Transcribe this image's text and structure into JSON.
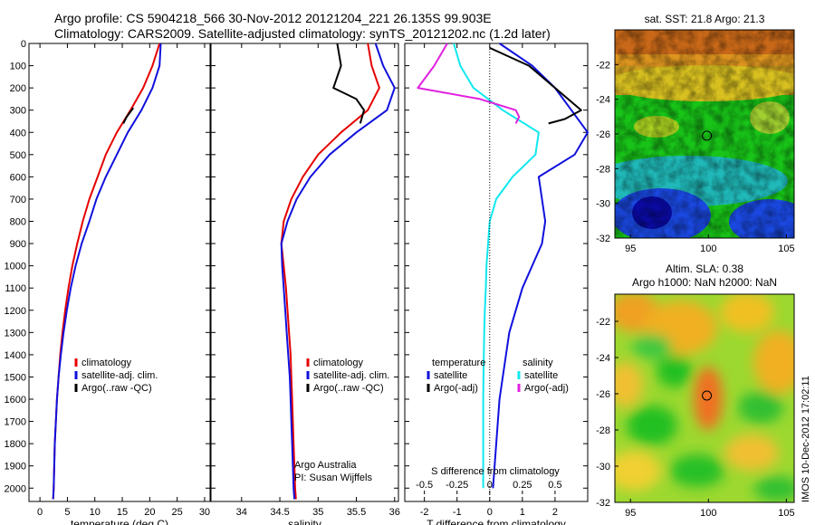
{
  "header": {
    "line1": "Argo profile: CS 5904218_566 30-Nov-2012 20121204_221 26.135S 99.903E",
    "line2": "Climatology: CARS2009. Satellite-adjusted climatology: synTS_20121202.nc (1.2d later)"
  },
  "colors": {
    "climatology": "#e60000",
    "satellite": "#1010dd",
    "argo": "#000000",
    "sat_salinity": "#10e8f0",
    "argo_salinity": "#e020e0"
  },
  "watermark": "IMOS 10-Dec-2012 17:02:11",
  "chart_data": [
    {
      "type": "line",
      "name": "temperature-profile",
      "xlabel": "temperature (deg C)",
      "ylabel": "",
      "xlim": [
        -2,
        31
      ],
      "ylim": [
        2060,
        0
      ],
      "xticks": [
        0,
        5,
        10,
        15,
        20,
        25,
        30
      ],
      "xtick_labels": [
        "0",
        "5",
        "10",
        "15",
        "20",
        "25",
        "30"
      ],
      "yticks": [
        0,
        100,
        200,
        300,
        400,
        500,
        600,
        700,
        800,
        900,
        1000,
        1100,
        1200,
        1300,
        1400,
        1500,
        1600,
        1700,
        1800,
        1900,
        2000
      ],
      "ytick_labels": [
        "0",
        "100",
        "200",
        "300",
        "400",
        "500",
        "600",
        "700",
        "800",
        "900",
        "1000",
        "1100",
        "1200",
        "1300",
        "1400",
        "1500",
        "1600",
        "1700",
        "1800",
        "1900",
        "2000"
      ],
      "legend": [
        "climatology",
        "satellite-adj. clim.",
        "Argo(..raw -QC)"
      ],
      "annotations": [],
      "series": [
        {
          "name": "climatology",
          "color_key": "climatology",
          "x": [
            21.8,
            20.5,
            18.8,
            16.5,
            14.0,
            12.0,
            10.5,
            9.0,
            7.8,
            6.8,
            5.9,
            5.2,
            4.6,
            4.1,
            3.7,
            3.4,
            3.1,
            2.9,
            2.7,
            2.6,
            2.5,
            2.4
          ],
          "y": [
            0,
            100,
            200,
            300,
            400,
            500,
            600,
            700,
            800,
            900,
            1000,
            1100,
            1200,
            1300,
            1400,
            1500,
            1600,
            1700,
            1800,
            1900,
            2000,
            2050
          ]
        },
        {
          "name": "satellite-adj. clim.",
          "color_key": "satellite",
          "x": [
            22.0,
            21.8,
            20.5,
            18.5,
            16.0,
            14.0,
            12.0,
            10.3,
            9.0,
            7.6,
            6.5,
            5.6,
            4.9,
            4.3,
            3.8,
            3.4,
            3.1,
            2.9,
            2.7,
            2.6,
            2.5,
            2.4
          ],
          "y": [
            0,
            100,
            200,
            300,
            400,
            500,
            600,
            700,
            800,
            900,
            1000,
            1100,
            1200,
            1300,
            1400,
            1500,
            1600,
            1700,
            1800,
            1900,
            2000,
            2050
          ]
        },
        {
          "name": "Argo(..raw -QC)",
          "color_key": "argo",
          "x": [
            17.0,
            15.8,
            15.2
          ],
          "y": [
            290,
            330,
            360
          ]
        }
      ]
    },
    {
      "type": "line",
      "name": "salinity-profile",
      "xlabel": "salinity",
      "ylabel": "",
      "xlim": [
        33.6,
        36.05
      ],
      "ylim": [
        2060,
        0
      ],
      "xticks": [
        34,
        34.5,
        35,
        35.5,
        36
      ],
      "xtick_labels": [
        "34",
        "34.5",
        "35",
        "35.5",
        "36"
      ],
      "legend": [
        "climatology",
        "satellite-adj. clim.",
        "Argo(..raw -QC)"
      ],
      "annotations": [
        "Argo Australia",
        "PI: Susan Wijffels"
      ],
      "series": [
        {
          "name": "climatology",
          "color_key": "climatology",
          "x": [
            35.65,
            35.7,
            35.8,
            35.65,
            35.3,
            35.0,
            34.8,
            34.65,
            34.55,
            34.52,
            34.55,
            34.58,
            34.6,
            34.62,
            34.64,
            34.65,
            34.66,
            34.67,
            34.68,
            34.69,
            34.7,
            34.71
          ],
          "y": [
            0,
            100,
            200,
            300,
            400,
            500,
            600,
            700,
            800,
            900,
            1000,
            1100,
            1200,
            1300,
            1400,
            1500,
            1600,
            1700,
            1800,
            1900,
            2000,
            2050
          ]
        },
        {
          "name": "satellite-adj. clim.",
          "color_key": "satellite",
          "x": [
            35.75,
            35.85,
            36.0,
            35.9,
            35.5,
            35.15,
            34.9,
            34.72,
            34.6,
            34.52,
            34.53,
            34.55,
            34.57,
            34.59,
            34.61,
            34.63,
            34.64,
            34.65,
            34.66,
            34.67,
            34.68,
            34.69
          ],
          "y": [
            0,
            100,
            200,
            300,
            400,
            500,
            600,
            700,
            800,
            900,
            1000,
            1100,
            1200,
            1300,
            1400,
            1500,
            1600,
            1700,
            1800,
            1900,
            2000,
            2050
          ]
        },
        {
          "name": "Argo(..raw -QC)",
          "color_key": "argo",
          "x": [
            35.25,
            35.3,
            35.2,
            35.5,
            35.6,
            35.55
          ],
          "y": [
            0,
            100,
            200,
            250,
            300,
            360
          ]
        }
      ]
    },
    {
      "type": "line",
      "name": "difference-profile",
      "xlabel": "T difference from climatology",
      "xlabel_top": "S difference from climatology",
      "ylabel": "",
      "xlim": [
        -2.6,
        3.0
      ],
      "ylim": [
        2060,
        0
      ],
      "xticks": [
        -2,
        -1,
        0,
        1,
        2
      ],
      "xtick_labels": [
        "-2",
        "-1",
        "0",
        "1",
        "2"
      ],
      "s_ticks": [
        -0.5,
        -0.25,
        0,
        0.25,
        0.5
      ],
      "s_tick_labels": [
        "-0.5",
        "-0.25",
        "0",
        "0.25",
        "0.5"
      ],
      "legend_title_t": "temperature",
      "legend_title_s": "salinity",
      "legend_t": [
        "satellite",
        "Argo(-adj)"
      ],
      "legend_s": [
        "satellite",
        "Argo(-adj)"
      ],
      "series": [
        {
          "name": "temperature satellite",
          "color_key": "satellite",
          "x": [
            0.3,
            1.3,
            2.0,
            2.5,
            3.0,
            2.6,
            1.5,
            1.6,
            1.7,
            1.6,
            1.3,
            1.0,
            0.8,
            0.6,
            0.5,
            0.4,
            0.3,
            0.25,
            0.2,
            0.15,
            0.1
          ],
          "y": [
            0,
            100,
            200,
            300,
            400,
            500,
            600,
            700,
            800,
            900,
            1000,
            1100,
            1200,
            1300,
            1400,
            1500,
            1600,
            1700,
            1800,
            1900,
            2000
          ]
        },
        {
          "name": "temperature Argo(-adj)",
          "color_key": "argo",
          "x": [
            0.0,
            1.2,
            2.0,
            2.8,
            2.3,
            1.8
          ],
          "y": [
            20,
            100,
            200,
            300,
            340,
            360
          ]
        },
        {
          "name": "salinity satellite",
          "color_key": "sat_salinity",
          "x": [
            -1.1,
            -0.9,
            -0.5,
            0.4,
            1.5,
            1.4,
            0.7,
            0.2,
            0.0,
            -0.05,
            -0.1,
            -0.12,
            -0.15,
            -0.17,
            -0.18,
            -0.19,
            -0.2,
            -0.2,
            -0.2,
            -0.2,
            -0.2
          ],
          "y": [
            0,
            100,
            200,
            300,
            400,
            500,
            600,
            700,
            800,
            900,
            1000,
            1100,
            1200,
            1300,
            1400,
            1500,
            1600,
            1700,
            1800,
            1900,
            2000
          ]
        },
        {
          "name": "salinity Argo(-adj)",
          "color_key": "argo_salinity",
          "x": [
            -1.3,
            -1.7,
            -2.2,
            -0.3,
            0.8,
            0.9,
            0.8
          ],
          "y": [
            0,
            100,
            200,
            250,
            300,
            330,
            360
          ]
        }
      ]
    },
    {
      "type": "heatmap",
      "name": "sst-map",
      "title": "sat. SST: 21.8 Argo: 21.3",
      "xticks": [
        95,
        100,
        105
      ],
      "xtick_labels": [
        "95",
        "100",
        "105"
      ],
      "yticks": [
        -22,
        -24,
        -26,
        -28,
        -30,
        -32
      ],
      "ytick_labels": [
        "-22",
        "-24",
        "-26",
        "-28",
        "-30",
        "-32"
      ],
      "xlim": [
        94,
        105.5
      ],
      "ylim": [
        -32,
        -20
      ],
      "marker": [
        99.9,
        -26.1
      ]
    },
    {
      "type": "heatmap",
      "name": "sla-map",
      "title_line1": "Altim. SLA: 0.38",
      "title_line2": "Argo h1000: NaN h2000: NaN",
      "xticks": [
        95,
        100,
        105
      ],
      "xtick_labels": [
        "95",
        "100",
        "105"
      ],
      "yticks": [
        -22,
        -24,
        -26,
        -28,
        -30,
        -32
      ],
      "ytick_labels": [
        "-22",
        "-24",
        "-26",
        "-28",
        "-30",
        "-32"
      ],
      "xlim": [
        94,
        105.5
      ],
      "ylim": [
        -32,
        -20.5
      ],
      "marker": [
        99.9,
        -26.1
      ]
    }
  ]
}
